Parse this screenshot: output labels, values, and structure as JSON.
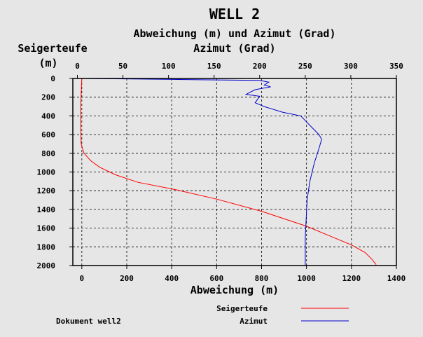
{
  "chart_data": {
    "type": "line",
    "title": "WELL 2",
    "subtitle": "Abweichung (m) und Azimut (Grad)",
    "y_axis": {
      "label": "Seigerteufe",
      "unit": "(m)",
      "ticks": [
        "0",
        "200",
        "400",
        "600",
        "800",
        "1000",
        "1200",
        "1400",
        "1600",
        "1800",
        "2000"
      ],
      "range": [
        0,
        2000
      ],
      "inverted": true
    },
    "x_axis_bottom": {
      "label": "Abweichung (m)",
      "ticks": [
        "0",
        "200",
        "400",
        "600",
        "800",
        "1000",
        "1200",
        "1400"
      ],
      "range": [
        -40,
        1400
      ]
    },
    "x_axis_top": {
      "label": "Azimut (Grad)",
      "ticks": [
        "0",
        "50",
        "100",
        "150",
        "200",
        "250",
        "300",
        "350"
      ],
      "range": [
        -5,
        350
      ]
    },
    "grid": true,
    "series": [
      {
        "name": "Seigerteufe",
        "axis": "bottom",
        "color": "#ff0000",
        "points": [
          [
            0,
            0
          ],
          [
            -2,
            100
          ],
          [
            -5,
            300
          ],
          [
            -5,
            500
          ],
          [
            -3,
            700
          ],
          [
            10,
            800
          ],
          [
            40,
            880
          ],
          [
            80,
            950
          ],
          [
            150,
            1030
          ],
          [
            250,
            1110
          ],
          [
            420,
            1190
          ],
          [
            600,
            1290
          ],
          [
            800,
            1420
          ],
          [
            1000,
            1580
          ],
          [
            1100,
            1680
          ],
          [
            1200,
            1780
          ],
          [
            1260,
            1860
          ],
          [
            1290,
            1930
          ],
          [
            1310,
            1990
          ]
        ]
      },
      {
        "name": "Azimut",
        "axis": "top",
        "color": "#0000cc",
        "points": [
          [
            0,
            0
          ],
          [
            100,
            10
          ],
          [
            200,
            20
          ],
          [
            210,
            40
          ],
          [
            205,
            70
          ],
          [
            212,
            90
          ],
          [
            195,
            120
          ],
          [
            185,
            170
          ],
          [
            200,
            190
          ],
          [
            195,
            260
          ],
          [
            205,
            300
          ],
          [
            225,
            360
          ],
          [
            245,
            400
          ],
          [
            255,
            500
          ],
          [
            265,
            600
          ],
          [
            268,
            650
          ],
          [
            265,
            750
          ],
          [
            260,
            900
          ],
          [
            255,
            1100
          ],
          [
            252,
            1300
          ],
          [
            251,
            1500
          ],
          [
            250,
            1700
          ],
          [
            250,
            1850
          ],
          [
            250,
            2000
          ]
        ]
      }
    ],
    "legend_position": "bottom-right",
    "footer": "Dokument well2"
  }
}
